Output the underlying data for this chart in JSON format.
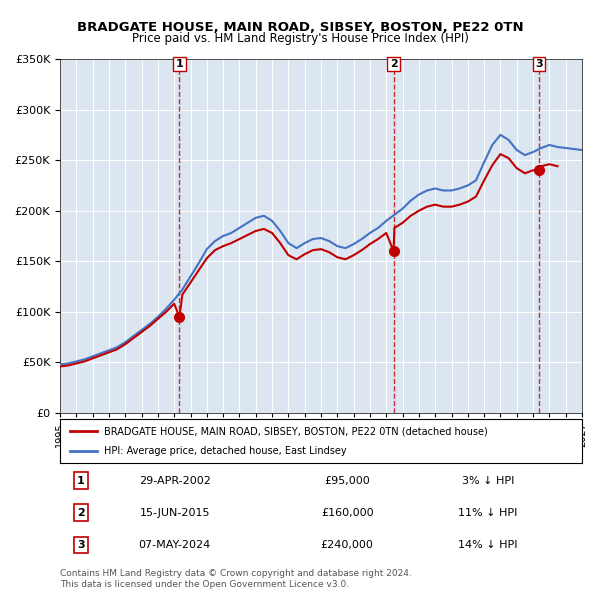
{
  "title": "BRADGATE HOUSE, MAIN ROAD, SIBSEY, BOSTON, PE22 0TN",
  "subtitle": "Price paid vs. HM Land Registry's House Price Index (HPI)",
  "ylim": [
    0,
    350000
  ],
  "yticks": [
    0,
    50000,
    100000,
    150000,
    200000,
    250000,
    300000,
    350000
  ],
  "ytick_labels": [
    "£0",
    "£50K",
    "£100K",
    "£150K",
    "£200K",
    "£250K",
    "£300K",
    "£350K"
  ],
  "background_color": "#dce6f1",
  "plot_bg_color": "#dce6f1",
  "hpi_color": "#4472c4",
  "price_color": "#c00000",
  "sale_marker_color": "#c00000",
  "legend_label_price": "BRADGATE HOUSE, MAIN ROAD, SIBSEY, BOSTON, PE22 0TN (detached house)",
  "legend_label_hpi": "HPI: Average price, detached house, East Lindsey",
  "sales": [
    {
      "num": 1,
      "date_label": "29-APR-2002",
      "price": 95000,
      "pct": "3%",
      "x_year": 2002.32
    },
    {
      "num": 2,
      "date_label": "15-JUN-2015",
      "price": 160000,
      "pct": "11%",
      "x_year": 2015.45
    },
    {
      "num": 3,
      "date_label": "07-MAY-2024",
      "price": 240000,
      "pct": "14%",
      "x_year": 2024.35
    }
  ],
  "hpi_data": {
    "years": [
      1995,
      1995.5,
      1996,
      1996.5,
      1997,
      1997.5,
      1998,
      1998.5,
      1999,
      1999.5,
      2000,
      2000.5,
      2001,
      2001.5,
      2002,
      2002.5,
      2003,
      2003.5,
      2004,
      2004.5,
      2005,
      2005.5,
      2006,
      2006.5,
      2007,
      2007.5,
      2008,
      2008.5,
      2009,
      2009.5,
      2010,
      2010.5,
      2011,
      2011.5,
      2012,
      2012.5,
      2013,
      2013.5,
      2014,
      2014.5,
      2015,
      2015.5,
      2016,
      2016.5,
      2017,
      2017.5,
      2018,
      2018.5,
      2019,
      2019.5,
      2020,
      2020.5,
      2021,
      2021.5,
      2022,
      2022.5,
      2023,
      2023.5,
      2024,
      2024.5,
      2025,
      2025.5,
      2026,
      2026.5,
      2027
    ],
    "values": [
      48000,
      49000,
      51000,
      53000,
      56000,
      59000,
      62000,
      65000,
      70000,
      76000,
      82000,
      88000,
      95000,
      103000,
      112000,
      122000,
      135000,
      148000,
      162000,
      170000,
      175000,
      178000,
      183000,
      188000,
      193000,
      195000,
      190000,
      180000,
      168000,
      163000,
      168000,
      172000,
      173000,
      170000,
      165000,
      163000,
      167000,
      172000,
      178000,
      183000,
      190000,
      196000,
      202000,
      210000,
      216000,
      220000,
      222000,
      220000,
      220000,
      222000,
      225000,
      230000,
      248000,
      265000,
      275000,
      270000,
      260000,
      255000,
      258000,
      262000,
      265000,
      263000,
      262000,
      261000,
      260000
    ]
  },
  "price_data": {
    "years": [
      1995,
      1995.5,
      1996,
      1996.5,
      1997,
      1997.5,
      1998,
      1998.5,
      1999,
      1999.5,
      2000,
      2000.5,
      2001,
      2001.5,
      2002,
      2002.32,
      2002.5,
      2003,
      2003.5,
      2004,
      2004.5,
      2005,
      2005.5,
      2006,
      2006.5,
      2007,
      2007.5,
      2008,
      2008.5,
      2009,
      2009.5,
      2010,
      2010.5,
      2011,
      2011.5,
      2012,
      2012.5,
      2013,
      2013.5,
      2014,
      2014.5,
      2015,
      2015.45,
      2015.5,
      2016,
      2016.5,
      2017,
      2017.5,
      2018,
      2018.5,
      2019,
      2019.5,
      2020,
      2020.5,
      2021,
      2021.5,
      2022,
      2022.5,
      2023,
      2023.5,
      2024,
      2024.35,
      2024.5,
      2025,
      2025.5
    ],
    "values": [
      46000,
      47000,
      49000,
      51000,
      54000,
      57000,
      60000,
      63000,
      68000,
      74000,
      80000,
      86000,
      93000,
      100000,
      108000,
      95000,
      117000,
      129000,
      141000,
      153000,
      161000,
      165000,
      168000,
      172000,
      176000,
      180000,
      182000,
      178000,
      168000,
      156000,
      152000,
      157000,
      161000,
      162000,
      159000,
      154000,
      152000,
      156000,
      161000,
      167000,
      172000,
      178000,
      160000,
      183000,
      188000,
      195000,
      200000,
      204000,
      206000,
      204000,
      204000,
      206000,
      209000,
      214000,
      230000,
      245000,
      256000,
      252000,
      242000,
      237000,
      240000,
      240000,
      244000,
      246000,
      244000
    ]
  },
  "sale_dashed_color": "#c00000",
  "footnote": "Contains HM Land Registry data © Crown copyright and database right 2024.\nThis data is licensed under the Open Government Licence v3.0.",
  "xlim": [
    1995,
    2027
  ],
  "xticks": [
    1995,
    1996,
    1997,
    1998,
    1999,
    2000,
    2001,
    2002,
    2003,
    2004,
    2005,
    2006,
    2007,
    2008,
    2009,
    2010,
    2011,
    2012,
    2013,
    2014,
    2015,
    2016,
    2017,
    2018,
    2019,
    2020,
    2021,
    2022,
    2023,
    2024,
    2025,
    2026,
    2027
  ]
}
